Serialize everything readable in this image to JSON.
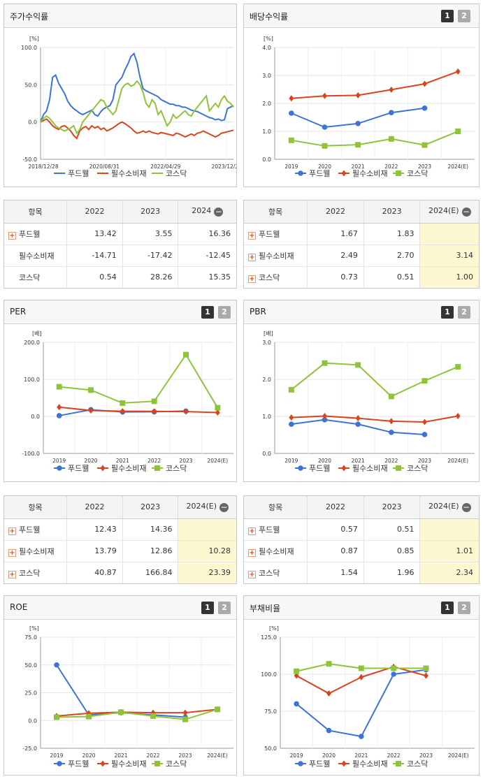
{
  "colors": {
    "food": "#3b73d9",
    "staple": "#d9441c",
    "kosdaq": "#8fc43a"
  },
  "legend": [
    "푸드웰",
    "필수소비재",
    "코스닥"
  ],
  "pager": {
    "p1": "1",
    "p2": "2"
  },
  "charts": {
    "stock": {
      "title": "주가수익률",
      "unit": "[%]",
      "chart_data": {
        "type": "line",
        "ylim": [
          -50,
          100
        ],
        "yticks": [
          "100.0",
          "50.0",
          "0.0",
          "-50.0"
        ],
        "xticks": [
          "2018/12/28",
          "2020/08/31",
          "2022/04/29",
          "2023/12/28"
        ],
        "series": [
          {
            "name": "푸드웰",
            "values": [
              0,
              10,
              15,
              30,
              60,
              63,
              52,
              45,
              38,
              28,
              22,
              18,
              15,
              12,
              10,
              12,
              14,
              16,
              10,
              8,
              14,
              18,
              20,
              22,
              30,
              50,
              55,
              60,
              70,
              78,
              88,
              92,
              80,
              60,
              45,
              42,
              40,
              38,
              36,
              34,
              30,
              28,
              26,
              24,
              24,
              22,
              22,
              20,
              20,
              18,
              16,
              15,
              14,
              12,
              10,
              8,
              6,
              5,
              3,
              4,
              2,
              3,
              18,
              20,
              22
            ]
          },
          {
            "name": "필수소비재",
            "values": [
              0,
              2,
              4,
              0,
              -5,
              -8,
              -10,
              -6,
              -5,
              -8,
              -12,
              -18,
              -22,
              -12,
              -8,
              -6,
              -10,
              -5,
              -8,
              -6,
              -10,
              -8,
              -12,
              -10,
              -8,
              -5,
              -2,
              0,
              -2,
              -5,
              -8,
              -12,
              -15,
              -14,
              -12,
              -14,
              -12,
              -14,
              -15,
              -16,
              -14,
              -15,
              -16,
              -17,
              -18,
              -15,
              -16,
              -18,
              -20,
              -18,
              -16,
              -18,
              -15,
              -14,
              -12,
              -14,
              -16,
              -18,
              -20,
              -18,
              -15,
              -14,
              -13,
              -12,
              -11
            ]
          },
          {
            "name": "코스닥",
            "values": [
              0,
              5,
              8,
              5,
              0,
              -5,
              -8,
              -10,
              -12,
              -10,
              -8,
              -5,
              -15,
              -10,
              0,
              5,
              10,
              15,
              20,
              25,
              30,
              28,
              20,
              15,
              10,
              15,
              30,
              45,
              50,
              52,
              48,
              50,
              55,
              50,
              40,
              25,
              20,
              30,
              25,
              10,
              15,
              5,
              -5,
              0,
              10,
              5,
              8,
              12,
              15,
              10,
              8,
              15,
              20,
              25,
              30,
              35,
              15,
              20,
              25,
              20,
              30,
              35,
              28,
              25,
              20
            ]
          }
        ]
      }
    },
    "dividend": {
      "title": "배당수익률",
      "unit": "[%]",
      "chart_data": {
        "type": "line",
        "ylim": [
          0,
          4
        ],
        "yticks": [
          "4.0",
          "3.0",
          "2.0",
          "1.0",
          "0.0"
        ],
        "categories": [
          "2019",
          "2020",
          "2021",
          "2022",
          "2023",
          "2024(E)"
        ],
        "series": [
          {
            "name": "푸드웰",
            "values": [
              1.65,
              1.15,
              1.28,
              1.67,
              1.83,
              null
            ]
          },
          {
            "name": "필수소비재",
            "values": [
              2.18,
              2.27,
              2.29,
              2.49,
              2.7,
              3.14
            ]
          },
          {
            "name": "코스닥",
            "values": [
              0.68,
              0.48,
              0.52,
              0.73,
              0.51,
              1.0
            ]
          }
        ]
      }
    },
    "per": {
      "title": "PER",
      "unit": "[배]",
      "chart_data": {
        "type": "line",
        "ylim": [
          -100,
          200
        ],
        "yticks": [
          "200.0",
          "100.0",
          "0.0",
          "-100.0"
        ],
        "categories": [
          "2019",
          "2020",
          "2021",
          "2022",
          "2023",
          "2024(E)"
        ],
        "series": [
          {
            "name": "푸드웰",
            "values": [
              2,
              18,
              12,
              12.43,
              14.36,
              null
            ]
          },
          {
            "name": "필수소비재",
            "values": [
              25,
              16,
              14,
              13.79,
              12.86,
              10.28
            ]
          },
          {
            "name": "코스닥",
            "values": [
              80,
              71,
              36,
              40.87,
              166.84,
              23.39
            ]
          }
        ]
      }
    },
    "pbr": {
      "title": "PBR",
      "unit": "[배]",
      "chart_data": {
        "type": "line",
        "ylim": [
          0,
          3
        ],
        "yticks": [
          "3.0",
          "2.0",
          "1.0",
          "0.0"
        ],
        "categories": [
          "2019",
          "2020",
          "2021",
          "2022",
          "2023",
          "2024(E)"
        ],
        "series": [
          {
            "name": "푸드웰",
            "values": [
              0.79,
              0.91,
              0.79,
              0.57,
              0.51,
              null
            ]
          },
          {
            "name": "필수소비재",
            "values": [
              0.97,
              1.01,
              0.95,
              0.87,
              0.85,
              1.01
            ]
          },
          {
            "name": "코스닥",
            "values": [
              1.72,
              2.44,
              2.39,
              1.54,
              1.96,
              2.34
            ]
          }
        ]
      }
    },
    "roe": {
      "title": "ROE",
      "unit": "[%]",
      "chart_data": {
        "type": "line",
        "ylim": [
          -25,
          75
        ],
        "yticks": [
          "75.0",
          "50.0",
          "25.0",
          "0.0",
          "-25.0"
        ],
        "categories": [
          "2019",
          "2020",
          "2021",
          "2022",
          "2023",
          "2024(E)"
        ],
        "series": [
          {
            "name": "푸드웰",
            "values": [
              50,
              5,
              7,
              5,
              3,
              null
            ]
          },
          {
            "name": "필수소비재",
            "values": [
              4,
              6.5,
              7.5,
              7,
              7,
              10
            ]
          },
          {
            "name": "코스닥",
            "values": [
              3,
              3.5,
              7.5,
              4,
              1,
              10
            ]
          }
        ]
      }
    },
    "debt": {
      "title": "부채비율",
      "unit": "[%]",
      "chart_data": {
        "type": "line",
        "ylim": [
          50,
          125
        ],
        "yticks": [
          "125.0",
          "100.0",
          "75.0",
          "50.0"
        ],
        "categories": [
          "2019",
          "2020",
          "2021",
          "2022",
          "2023",
          "2024(E)"
        ],
        "series": [
          {
            "name": "푸드웰",
            "values": [
              80,
              62,
              58,
              100,
              103,
              null
            ]
          },
          {
            "name": "필수소비재",
            "values": [
              99,
              87,
              98,
              105,
              99,
              null
            ]
          },
          {
            "name": "코스닥",
            "values": [
              102,
              107,
              104,
              104,
              104,
              null
            ]
          }
        ]
      }
    }
  },
  "tables": {
    "stock": {
      "headers": [
        "항목",
        "2022",
        "2023",
        "2024"
      ],
      "rows": [
        {
          "label": "푸드웰",
          "plus": true,
          "values": [
            "13.42",
            "3.55",
            "16.36"
          ]
        },
        {
          "label": "필수소비재",
          "plus": false,
          "values": [
            "-14.71",
            "-17.42",
            "-12.45"
          ]
        },
        {
          "label": "코스닥",
          "plus": false,
          "values": [
            "0.54",
            "28.26",
            "15.35"
          ]
        }
      ]
    },
    "dividend": {
      "headers": [
        "항목",
        "2022",
        "2023",
        "2024(E)"
      ],
      "rows": [
        {
          "label": "푸드웰",
          "plus": true,
          "values": [
            "1.67",
            "1.83",
            ""
          ]
        },
        {
          "label": "필수소비재",
          "plus": true,
          "values": [
            "2.49",
            "2.70",
            "3.14"
          ]
        },
        {
          "label": "코스닥",
          "plus": true,
          "values": [
            "0.73",
            "0.51",
            "1.00"
          ]
        }
      ]
    },
    "per": {
      "headers": [
        "항목",
        "2022",
        "2023",
        "2024(E)"
      ],
      "rows": [
        {
          "label": "푸드웰",
          "plus": true,
          "values": [
            "12.43",
            "14.36",
            ""
          ]
        },
        {
          "label": "필수소비재",
          "plus": true,
          "values": [
            "13.79",
            "12.86",
            "10.28"
          ]
        },
        {
          "label": "코스닥",
          "plus": true,
          "values": [
            "40.87",
            "166.84",
            "23.39"
          ]
        }
      ]
    },
    "pbr": {
      "headers": [
        "항목",
        "2022",
        "2023",
        "2024(E)"
      ],
      "rows": [
        {
          "label": "푸드웰",
          "plus": true,
          "values": [
            "0.57",
            "0.51",
            ""
          ]
        },
        {
          "label": "필수소비재",
          "plus": true,
          "values": [
            "0.87",
            "0.85",
            "1.01"
          ]
        },
        {
          "label": "코스닥",
          "plus": true,
          "values": [
            "1.54",
            "1.96",
            "2.34"
          ]
        }
      ]
    }
  }
}
